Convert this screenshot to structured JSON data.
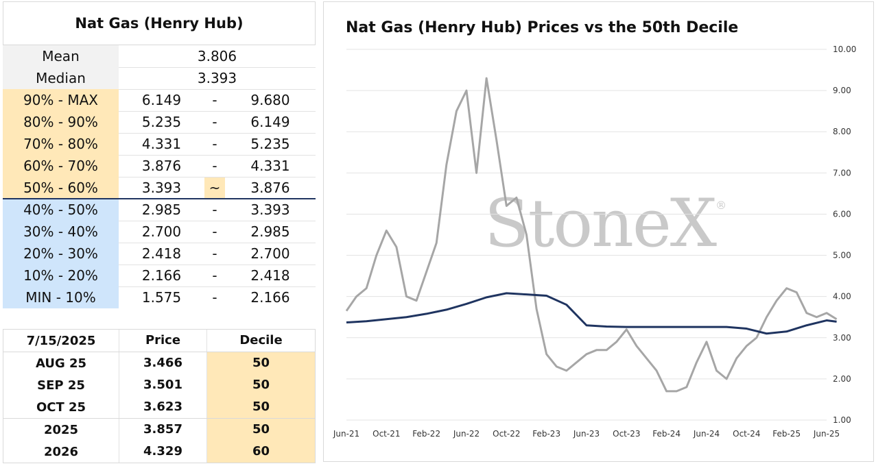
{
  "decile_table": {
    "title": "Nat Gas (Henry Hub)",
    "mean": {
      "label": "Mean",
      "value": "3.806"
    },
    "median": {
      "label": "Median",
      "value": "3.393"
    },
    "rows": [
      {
        "label": "90% - MAX",
        "low": "6.149",
        "sep": "-",
        "high": "9.680",
        "color": "#ffe8b8"
      },
      {
        "label": "80% - 90%",
        "low": "5.235",
        "sep": "-",
        "high": "6.149",
        "color": "#ffe8b8"
      },
      {
        "label": "70% - 80%",
        "low": "4.331",
        "sep": "-",
        "high": "5.235",
        "color": "#ffe8b8"
      },
      {
        "label": "60% - 70%",
        "low": "3.876",
        "sep": "-",
        "high": "4.331",
        "color": "#ffe8b8"
      },
      {
        "label": "50% - 60%",
        "low": "3.393",
        "sep": "~",
        "high": "3.876",
        "color": "#ffe8b8"
      },
      {
        "label": "40% - 50%",
        "low": "2.985",
        "sep": "-",
        "high": "3.393",
        "color": "#cfe5fb"
      },
      {
        "label": "30% - 40%",
        "low": "2.700",
        "sep": "-",
        "high": "2.985",
        "color": "#cfe5fb"
      },
      {
        "label": "20% - 30%",
        "low": "2.418",
        "sep": "-",
        "high": "2.700",
        "color": "#cfe5fb"
      },
      {
        "label": "10% - 20%",
        "low": "2.166",
        "sep": "-",
        "high": "2.418",
        "color": "#cfe5fb"
      },
      {
        "label": "MIN - 10%",
        "low": "1.575",
        "sep": "-",
        "high": "2.166",
        "color": "#cfe5fb"
      }
    ]
  },
  "contracts_table": {
    "headers": [
      "7/15/2025",
      "Price",
      "Decile"
    ],
    "rows": [
      {
        "name": "AUG 25",
        "price": "3.466",
        "decile": "50"
      },
      {
        "name": "SEP 25",
        "price": "3.501",
        "decile": "50"
      },
      {
        "name": "OCT 25",
        "price": "3.623",
        "decile": "50"
      },
      {
        "name": "2025",
        "price": "3.857",
        "decile": "50"
      },
      {
        "name": "2026",
        "price": "4.329",
        "decile": "60"
      }
    ]
  },
  "watermark": "StoneX",
  "watermark_mark": "®",
  "colors": {
    "price_line": "#a6a6a6",
    "median_line": "#1f3460",
    "orange": "#ffe8b8",
    "blue": "#cfe5fb"
  },
  "chart_data": {
    "type": "line",
    "title": "Nat Gas (Henry Hub) Prices vs the 50th Decile",
    "xlabel": "",
    "ylabel": "",
    "y_axis_side": "right",
    "ylim": [
      1.0,
      10.0
    ],
    "y_ticks": [
      "1.00",
      "2.00",
      "3.00",
      "4.00",
      "5.00",
      "6.00",
      "7.00",
      "8.00",
      "9.00",
      "10.00"
    ],
    "x_ticks": [
      "Jun-21",
      "Oct-21",
      "Feb-22",
      "Jun-22",
      "Oct-22",
      "Feb-23",
      "Jun-23",
      "Oct-23",
      "Feb-24",
      "Jun-24",
      "Oct-24",
      "Feb-25",
      "Jun-25"
    ],
    "grid": true,
    "legend": "none",
    "series": [
      {
        "x": [
          "Jun-21",
          "Jul-21",
          "Aug-21",
          "Sep-21",
          "Oct-21",
          "Nov-21",
          "Dec-21",
          "Jan-22",
          "Feb-22",
          "Mar-22",
          "Apr-22",
          "May-22",
          "Jun-22",
          "Jul-22",
          "Aug-22",
          "Sep-22",
          "Oct-22",
          "Nov-22",
          "Dec-22",
          "Jan-23",
          "Feb-23",
          "Mar-23",
          "Apr-23",
          "May-23",
          "Jun-23",
          "Jul-23",
          "Aug-23",
          "Sep-23",
          "Oct-23",
          "Nov-23",
          "Dec-23",
          "Jan-24",
          "Feb-24",
          "Mar-24",
          "Apr-24",
          "May-24",
          "Jun-24",
          "Jul-24",
          "Aug-24",
          "Sep-24",
          "Oct-24",
          "Nov-24",
          "Dec-24",
          "Jan-25",
          "Feb-25",
          "Mar-25",
          "Apr-25",
          "May-25",
          "Jun-25",
          "Jul-25"
        ],
        "values": [
          3.65,
          4.0,
          4.2,
          5.0,
          5.6,
          5.2,
          4.0,
          3.9,
          4.6,
          5.3,
          7.2,
          8.5,
          9.0,
          7.0,
          9.3,
          7.8,
          6.2,
          6.4,
          5.5,
          3.7,
          2.6,
          2.3,
          2.2,
          2.4,
          2.6,
          2.7,
          2.7,
          2.9,
          3.2,
          2.8,
          2.5,
          2.2,
          1.7,
          1.7,
          1.8,
          2.4,
          2.9,
          2.2,
          2.0,
          2.5,
          2.8,
          3.0,
          3.5,
          3.9,
          4.2,
          4.1,
          3.6,
          3.5,
          3.6,
          3.45
        ]
      },
      {
        "x": [
          "Jun-21",
          "Aug-21",
          "Oct-21",
          "Dec-21",
          "Feb-22",
          "Apr-22",
          "Jun-22",
          "Aug-22",
          "Oct-22",
          "Dec-22",
          "Feb-23",
          "Apr-23",
          "Jun-23",
          "Aug-23",
          "Oct-23",
          "Dec-23",
          "Feb-24",
          "Apr-24",
          "Jun-24",
          "Aug-24",
          "Oct-24",
          "Dec-24",
          "Feb-25",
          "Apr-25",
          "Jun-25",
          "Jul-25"
        ],
        "values": [
          3.37,
          3.4,
          3.45,
          3.5,
          3.58,
          3.68,
          3.82,
          3.98,
          4.08,
          4.05,
          4.02,
          3.8,
          3.3,
          3.27,
          3.26,
          3.26,
          3.26,
          3.26,
          3.26,
          3.26,
          3.22,
          3.1,
          3.15,
          3.3,
          3.42,
          3.39
        ]
      }
    ]
  }
}
